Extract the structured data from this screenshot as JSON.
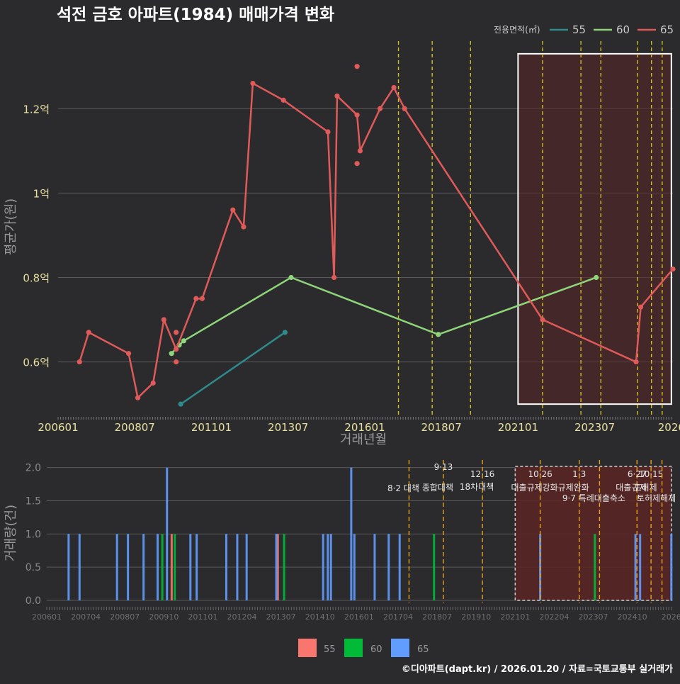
{
  "title": "석전 금호 아파트(1984) 매매가격 변화",
  "footer": "©디아파트(dapt.kr) / 2026.01.20 / 자료=국토교통부 실거래가",
  "colors": {
    "background": "#2b2b2d",
    "s55": "#2e8b8b",
    "s60": "#8fd67a",
    "s65": "#e05a5a",
    "bar55": "#f8766d",
    "bar60": "#00ba38",
    "bar65": "#619cff",
    "policy_line": "#d4c11a",
    "policy_line_bottom": "#e8a317",
    "highlight_fill": "#5a2424",
    "axis_text": "#e8e0a0",
    "grid": "#5a5a5a"
  },
  "chart_data": [
    {
      "type": "line",
      "title": "석전 금호 아파트(1984) 매매가격 변화",
      "xlabel": "거래년월",
      "ylabel": "평균가(원)",
      "legend_title": "전용면적(㎡)",
      "legend_position": "top-right",
      "x_ticks": [
        "200601",
        "200807",
        "201101",
        "201307",
        "201601",
        "201807",
        "202101",
        "202307",
        "2026"
      ],
      "y_ticks": [
        0.6,
        0.8,
        1.0,
        1.2
      ],
      "y_tick_labels": [
        "0.6억",
        "0.8억",
        "1억",
        "1.2억"
      ],
      "ylim": [
        0.47,
        1.36
      ],
      "xlim": [
        2006.0,
        2026.05
      ],
      "series": [
        {
          "name": "55",
          "points": [
            [
              2010.0,
              0.5
            ],
            [
              2013.4,
              0.67
            ]
          ]
        },
        {
          "name": "60",
          "points": [
            [
              2009.7,
              0.62
            ],
            [
              2009.95,
              0.64
            ],
            [
              2010.1,
              0.65
            ],
            [
              2013.6,
              0.8
            ],
            [
              2018.4,
              0.665
            ],
            [
              2023.55,
              0.8
            ]
          ]
        },
        {
          "name": "65",
          "points": [
            [
              2006.7,
              0.6
            ],
            [
              2007.0,
              0.67
            ],
            [
              2008.3,
              0.62
            ],
            [
              2008.6,
              0.515
            ],
            [
              2009.1,
              0.55
            ],
            [
              2009.45,
              0.7
            ],
            [
              2009.85,
              0.63
            ],
            [
              2010.5,
              0.75
            ],
            [
              2010.7,
              0.75
            ],
            [
              2011.7,
              0.96
            ],
            [
              2012.05,
              0.92
            ],
            [
              2012.35,
              1.26
            ],
            [
              2013.35,
              1.22
            ],
            [
              2014.8,
              1.145
            ],
            [
              2015.0,
              0.8
            ],
            [
              2015.1,
              1.23
            ],
            [
              2015.75,
              1.185
            ],
            [
              2015.85,
              1.1
            ],
            [
              2016.5,
              1.2
            ],
            [
              2016.95,
              1.25
            ],
            [
              2017.3,
              1.2
            ],
            [
              2021.8,
              0.7
            ],
            [
              2024.85,
              0.6
            ],
            [
              2025.0,
              0.73
            ],
            [
              2026.05,
              0.82
            ]
          ]
        }
      ],
      "extra_points": [
        {
          "series": "65",
          "x": 2009.85,
          "y": 0.67
        },
        {
          "series": "65",
          "x": 2009.85,
          "y": 0.6
        },
        {
          "series": "65",
          "x": 2015.75,
          "y": 1.3
        },
        {
          "series": "65",
          "x": 2015.75,
          "y": 1.07
        }
      ],
      "policy_lines_x": [
        2017.1,
        2018.2,
        2019.45,
        2021.8,
        2023.05,
        2023.7,
        2024.9,
        2025.35,
        2025.7
      ],
      "highlight_range": {
        "x_from": 2021.0,
        "x_to": 2026.0,
        "y_from": 0.5,
        "y_to": 1.33
      }
    },
    {
      "type": "bar",
      "xlabel": "",
      "ylabel": "거래량(건)",
      "x_ticks": [
        "200601",
        "200704",
        "200807",
        "200910",
        "201101",
        "201204",
        "201307",
        "201410",
        "201601",
        "201704",
        "201807",
        "201910",
        "202101",
        "202204",
        "202307",
        "202410",
        "2026"
      ],
      "y_ticks": [
        0.0,
        0.5,
        1.0,
        1.5,
        2.0
      ],
      "y_tick_labels": [
        "0.0",
        "0.5",
        "1.0",
        "1.5",
        "2.0"
      ],
      "ylim": [
        0,
        2.05
      ],
      "xlim": [
        2006.0,
        2026.05
      ],
      "series": [
        {
          "name": "55",
          "x": [
            2010.0,
            2013.4
          ],
          "values": [
            1,
            1
          ]
        },
        {
          "name": "60",
          "x": [
            2009.7,
            2010.1,
            2013.6,
            2018.4,
            2023.55
          ],
          "values": [
            1,
            1,
            1,
            1,
            1
          ]
        },
        {
          "name": "65",
          "x": [
            2006.7,
            2007.05,
            2008.25,
            2008.6,
            2009.1,
            2009.55,
            2009.85,
            2010.6,
            2010.8,
            2011.75,
            2012.1,
            2012.4,
            2013.35,
            2014.85,
            2015.0,
            2015.1,
            2015.75,
            2015.85,
            2016.5,
            2016.95,
            2017.3,
            2021.8,
            2024.85,
            2025.0,
            2026.0
          ],
          "values": [
            1,
            1,
            1,
            1,
            1,
            1,
            2,
            1,
            1,
            1,
            1,
            1,
            1,
            1,
            1,
            1,
            2,
            1,
            1,
            1,
            1,
            1,
            1,
            1,
            1
          ]
        }
      ],
      "policy_events": [
        {
          "x": 2017.6,
          "date": "",
          "label": "8·2 대책"
        },
        {
          "x": 2018.7,
          "date": "9·13",
          "label": "종합대책"
        },
        {
          "x": 2019.95,
          "date": "12·16",
          "label": "18차대책"
        },
        {
          "x": 2021.8,
          "date": "10·26",
          "label": "대출규제강화"
        },
        {
          "x": 2023.05,
          "date": "1·3",
          "label": "규제완화"
        },
        {
          "x": 2023.7,
          "date": "",
          "label": "9·7 특례대출축소"
        },
        {
          "x": 2024.9,
          "date": "6·27",
          "label": "대출규제"
        },
        {
          "x": 2025.35,
          "date": "10·15",
          "label": "토허제"
        },
        {
          "x": 2025.7,
          "date": "",
          "label": "토허제해제"
        }
      ],
      "highlight_range": {
        "x_from": 2021.0,
        "x_to": 2026.0
      }
    }
  ],
  "legend_bottom": {
    "items": [
      {
        "label": "55",
        "color": "#f8766d"
      },
      {
        "label": "60",
        "color": "#00ba38"
      },
      {
        "label": "65",
        "color": "#619cff"
      }
    ]
  }
}
